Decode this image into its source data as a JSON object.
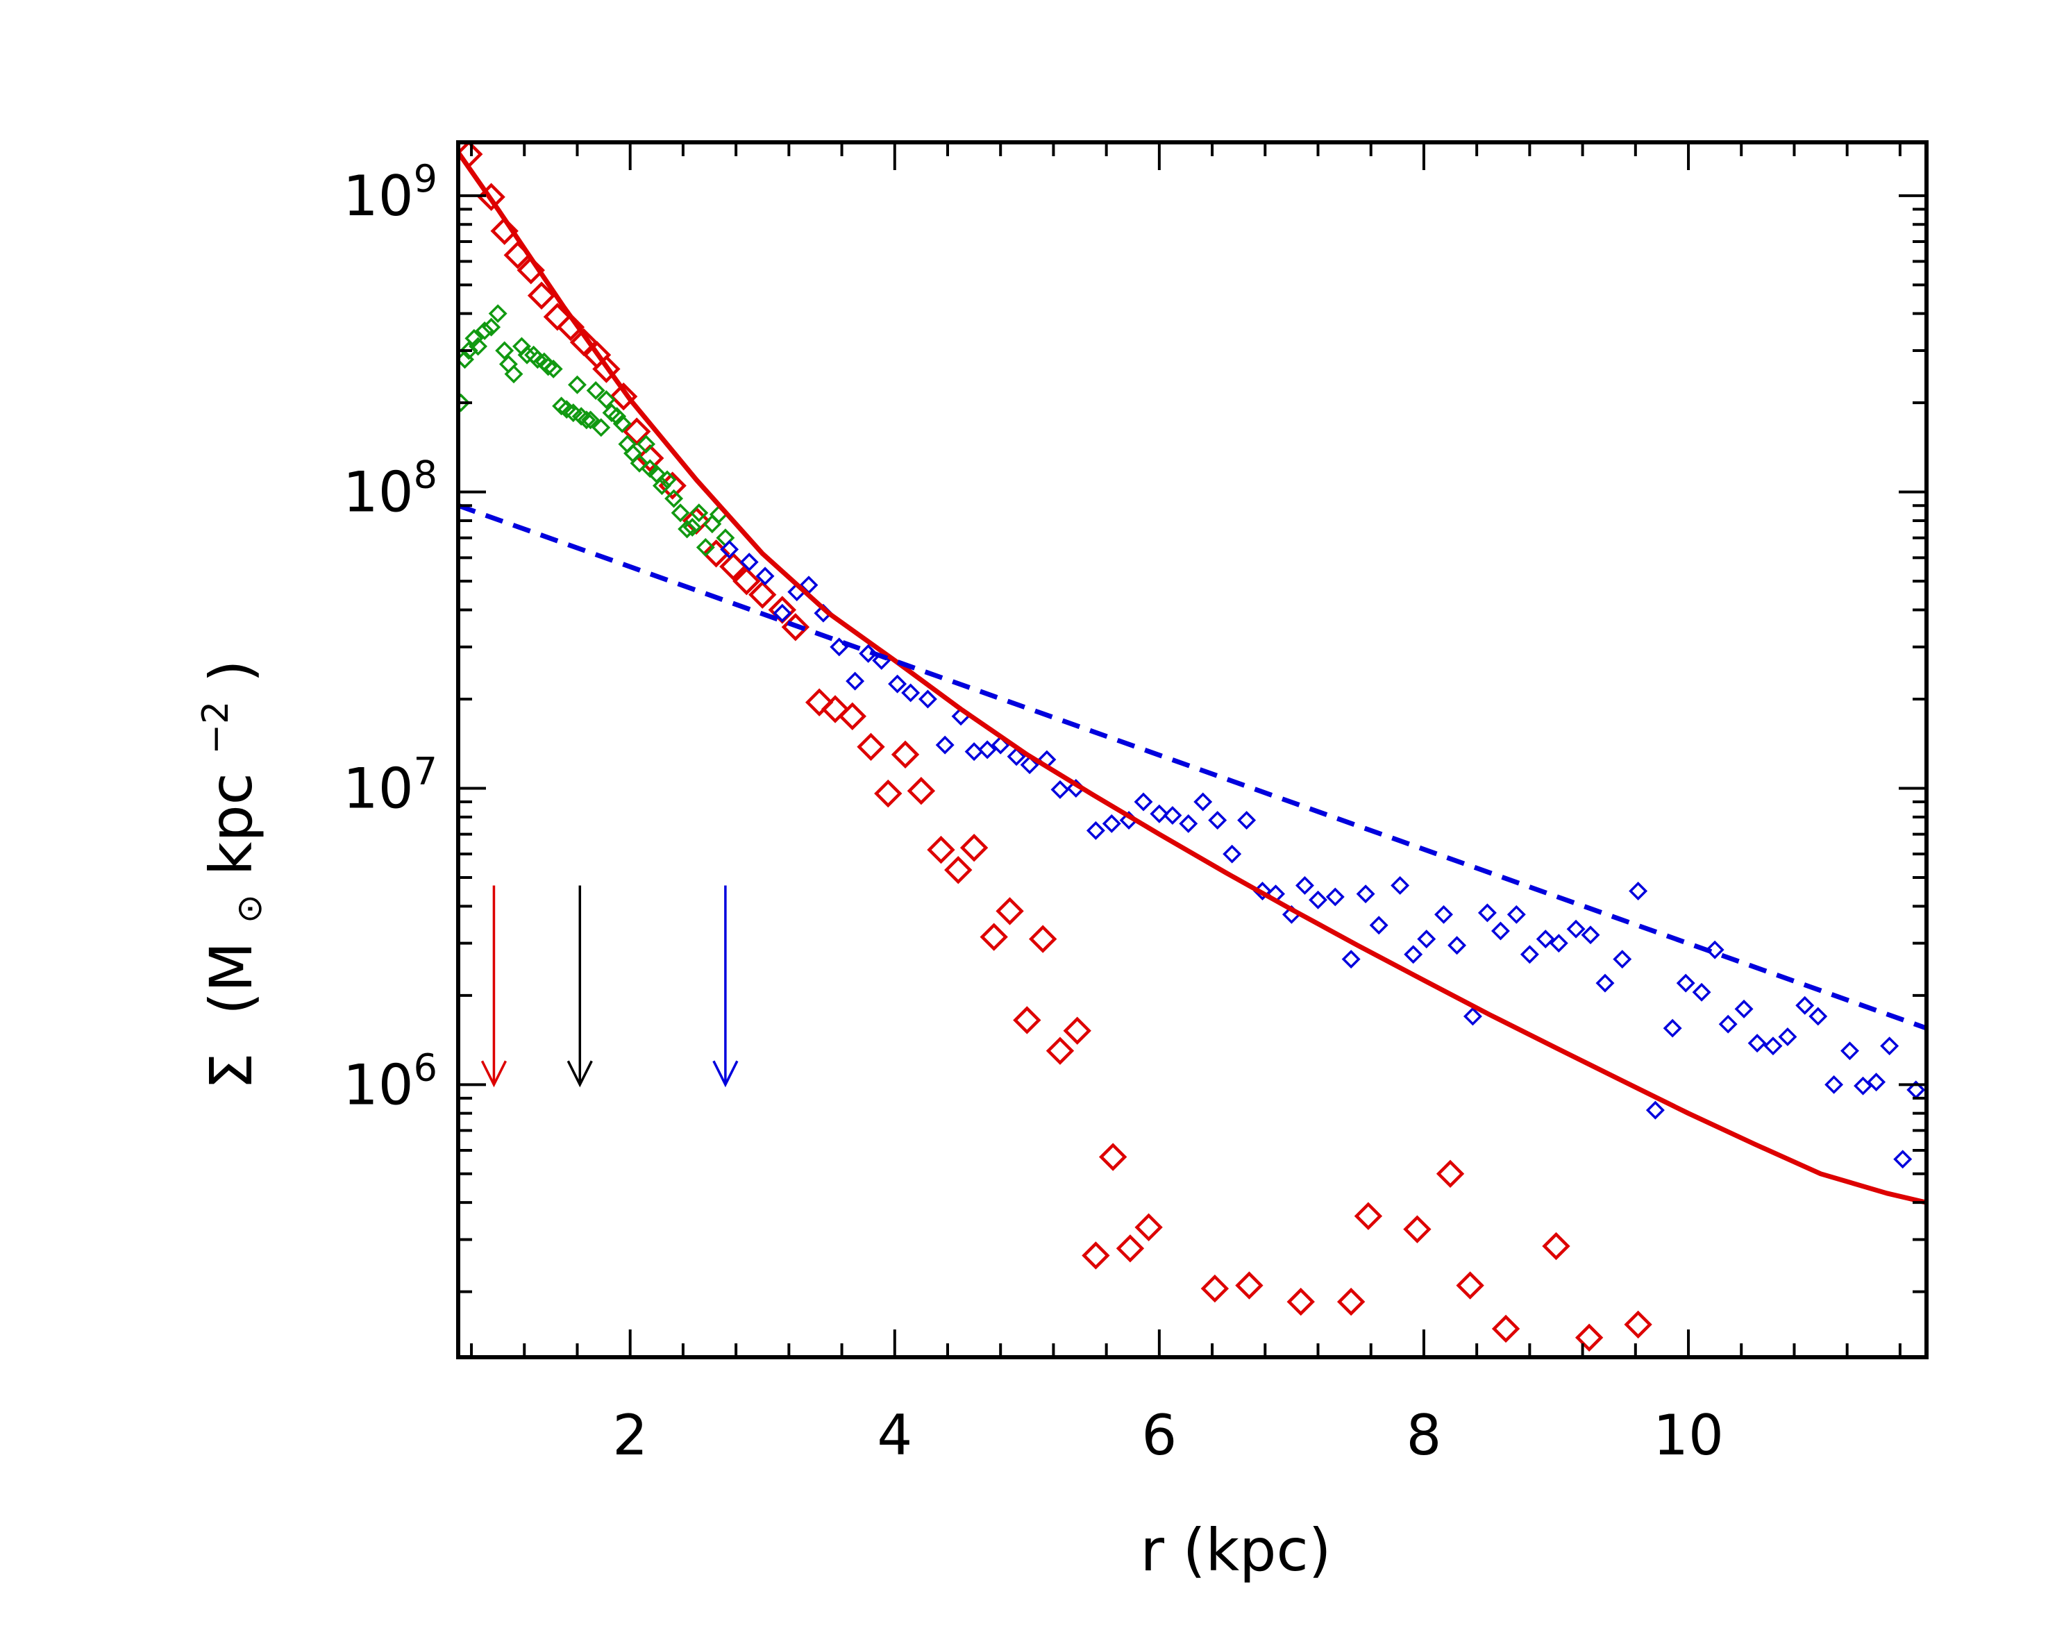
{
  "chart_data": {
    "type": "scatter",
    "title": "",
    "xlabel": "r (kpc)",
    "ylabel": {
      "symbol": "Σ",
      "open": "(M",
      "sun": "⊙",
      "unit": " kpc",
      "exponent": "−2",
      "close": ")"
    },
    "xlim": [
      0.7,
      11.8
    ],
    "ylim_log10": [
      5.08,
      9.18
    ],
    "yscale": "log",
    "x_ticks": [
      {
        "value": 2,
        "label": "2"
      },
      {
        "value": 4,
        "label": "4"
      },
      {
        "value": 6,
        "label": "6"
      },
      {
        "value": 8,
        "label": "8"
      },
      {
        "value": 10,
        "label": "10"
      }
    ],
    "y_ticks": [
      {
        "exp": 6,
        "base": "10",
        "sup": "6"
      },
      {
        "exp": 7,
        "base": "10",
        "sup": "7"
      },
      {
        "exp": 8,
        "base": "10",
        "sup": "8"
      },
      {
        "exp": 9,
        "base": "10",
        "sup": "9"
      }
    ],
    "colors": {
      "red": "#dd0000",
      "green": "#119911",
      "blue": "#0000dd",
      "black": "#000000"
    },
    "series": [
      {
        "name": "red-points",
        "color": "#dd0000",
        "marker": "diamond-large",
        "points": [
          [
            0.78,
            1380000000.0
          ],
          [
            0.95,
            990000000.0
          ],
          [
            1.05,
            760000000.0
          ],
          [
            1.15,
            630000000.0
          ],
          [
            1.25,
            560000000.0
          ],
          [
            1.33,
            460000000.0
          ],
          [
            1.45,
            390000000.0
          ],
          [
            1.55,
            360000000.0
          ],
          [
            1.65,
            320000000.0
          ],
          [
            1.75,
            290000000.0
          ],
          [
            1.82,
            260000000.0
          ],
          [
            1.95,
            210000000.0
          ],
          [
            2.05,
            160000000.0
          ],
          [
            2.15,
            130000000.0
          ],
          [
            2.32,
            105000000.0
          ],
          [
            2.5,
            80000000.0
          ],
          [
            2.65,
            62000000.0
          ],
          [
            2.78,
            56000000.0
          ],
          [
            2.88,
            50000000.0
          ],
          [
            3.0,
            45000000.0
          ],
          [
            3.15,
            40000000.0
          ],
          [
            3.25,
            35000000.0
          ],
          [
            3.43,
            19500000.0
          ],
          [
            3.55,
            18500000.0
          ],
          [
            3.68,
            17500000.0
          ],
          [
            3.82,
            13800000.0
          ],
          [
            3.95,
            9600000.0
          ],
          [
            4.08,
            13000000.0
          ],
          [
            4.2,
            9800000.0
          ],
          [
            4.35,
            6200000.0
          ],
          [
            4.48,
            5300000.0
          ],
          [
            4.6,
            6300000.0
          ],
          [
            4.75,
            3150000.0
          ],
          [
            4.87,
            3850000.0
          ],
          [
            5.0,
            1650000.0
          ],
          [
            5.12,
            3100000.0
          ],
          [
            5.25,
            1300000.0
          ],
          [
            5.38,
            1520000.0
          ],
          [
            5.52,
            265000.0
          ],
          [
            5.65,
            570000.0
          ],
          [
            5.78,
            280000.0
          ],
          [
            5.92,
            330000.0
          ],
          [
            6.42,
            205000.0
          ],
          [
            6.68,
            210000.0
          ],
          [
            7.07,
            185000.0
          ],
          [
            7.45,
            185000.0
          ],
          [
            7.58,
            360000.0
          ],
          [
            7.95,
            325000.0
          ],
          [
            8.2,
            500000.0
          ],
          [
            8.35,
            210000.0
          ],
          [
            8.62,
            150000.0
          ],
          [
            9.0,
            285000.0
          ],
          [
            9.25,
            140000.0
          ],
          [
            9.62,
            155000.0
          ]
        ]
      },
      {
        "name": "green-points",
        "color": "#119911",
        "marker": "diamond-small",
        "points": [
          [
            0.72,
            200000000.0
          ],
          [
            0.75,
            280000000.0
          ],
          [
            0.78,
            300000000.0
          ],
          [
            0.82,
            330000000.0
          ],
          [
            0.85,
            310000000.0
          ],
          [
            0.9,
            350000000.0
          ],
          [
            0.95,
            360000000.0
          ],
          [
            1.0,
            400000000.0
          ],
          [
            1.05,
            300000000.0
          ],
          [
            1.08,
            270000000.0
          ],
          [
            1.12,
            250000000.0
          ],
          [
            1.18,
            310000000.0
          ],
          [
            1.22,
            290000000.0
          ],
          [
            1.27,
            290000000.0
          ],
          [
            1.3,
            280000000.0
          ],
          [
            1.35,
            275000000.0
          ],
          [
            1.38,
            265000000.0
          ],
          [
            1.42,
            260000000.0
          ],
          [
            1.48,
            195000000.0
          ],
          [
            1.52,
            190000000.0
          ],
          [
            1.57,
            185000000.0
          ],
          [
            1.6,
            230000000.0
          ],
          [
            1.63,
            180000000.0
          ],
          [
            1.67,
            175000000.0
          ],
          [
            1.7,
            175000000.0
          ],
          [
            1.74,
            220000000.0
          ],
          [
            1.78,
            165000000.0
          ],
          [
            1.82,
            205000000.0
          ],
          [
            1.86,
            185000000.0
          ],
          [
            1.9,
            180000000.0
          ],
          [
            1.94,
            170000000.0
          ],
          [
            1.98,
            145000000.0
          ],
          [
            2.02,
            135000000.0
          ],
          [
            2.07,
            125000000.0
          ],
          [
            2.12,
            145000000.0
          ],
          [
            2.15,
            120000000.0
          ],
          [
            2.2,
            115000000.0
          ],
          [
            2.24,
            105000000.0
          ],
          [
            2.28,
            110000000.0
          ],
          [
            2.33,
            95000000.0
          ],
          [
            2.38,
            85000000.0
          ],
          [
            2.43,
            75000000.0
          ],
          [
            2.47,
            76000000.0
          ],
          [
            2.52,
            85000000.0
          ],
          [
            2.57,
            65000000.0
          ],
          [
            2.62,
            78000000.0
          ],
          [
            2.67,
            84000000.0
          ],
          [
            2.72,
            70000000.0
          ]
        ]
      },
      {
        "name": "blue-points",
        "color": "#0000dd",
        "marker": "diamond-small",
        "points": [
          [
            2.75,
            64000000.0
          ],
          [
            2.9,
            58000000.0
          ],
          [
            3.02,
            52000000.0
          ],
          [
            3.15,
            39000000.0
          ],
          [
            3.26,
            46000000.0
          ],
          [
            3.35,
            48500000.0
          ],
          [
            3.46,
            39000000.0
          ],
          [
            3.58,
            30000000.0
          ],
          [
            3.7,
            23000000.0
          ],
          [
            3.8,
            28500000.0
          ],
          [
            3.9,
            27000000.0
          ],
          [
            4.02,
            22500000.0
          ],
          [
            4.12,
            21000000.0
          ],
          [
            4.25,
            20000000.0
          ],
          [
            4.38,
            14000000.0
          ],
          [
            4.5,
            17500000.0
          ],
          [
            4.6,
            13300000.0
          ],
          [
            4.7,
            13500000.0
          ],
          [
            4.8,
            14000000.0
          ],
          [
            4.92,
            12800000.0
          ],
          [
            5.02,
            12000000.0
          ],
          [
            5.15,
            12500000.0
          ],
          [
            5.25,
            9900000.0
          ],
          [
            5.37,
            10000000.0
          ],
          [
            5.52,
            7200000.0
          ],
          [
            5.64,
            7600000.0
          ],
          [
            5.77,
            7800000.0
          ],
          [
            5.88,
            9000000.0
          ],
          [
            6.0,
            8200000.0
          ],
          [
            6.1,
            8100000.0
          ],
          [
            6.22,
            7600000.0
          ],
          [
            6.33,
            9000000.0
          ],
          [
            6.44,
            7800000.0
          ],
          [
            6.55,
            6000000.0
          ],
          [
            6.66,
            7800000.0
          ],
          [
            6.78,
            4500000.0
          ],
          [
            6.88,
            4400000.0
          ],
          [
            7.0,
            3750000.0
          ],
          [
            7.1,
            4700000.0
          ],
          [
            7.2,
            4200000.0
          ],
          [
            7.33,
            4300000.0
          ],
          [
            7.45,
            2650000.0
          ],
          [
            7.56,
            4400000.0
          ],
          [
            7.66,
            3450000.0
          ],
          [
            7.82,
            4700000.0
          ],
          [
            7.92,
            2750000.0
          ],
          [
            8.02,
            3100000.0
          ],
          [
            8.15,
            3750000.0
          ],
          [
            8.25,
            2950000.0
          ],
          [
            8.37,
            1700000.0
          ],
          [
            8.48,
            3800000.0
          ],
          [
            8.58,
            3300000.0
          ],
          [
            8.7,
            3750000.0
          ],
          [
            8.8,
            2750000.0
          ],
          [
            8.92,
            3100000.0
          ],
          [
            9.02,
            3000000.0
          ],
          [
            9.15,
            3350000.0
          ],
          [
            9.26,
            3200000.0
          ],
          [
            9.37,
            2200000.0
          ],
          [
            9.5,
            2650000.0
          ],
          [
            9.62,
            4500000.0
          ],
          [
            9.75,
            820000.0
          ],
          [
            9.88,
            1550000.0
          ],
          [
            9.98,
            2200000.0
          ],
          [
            10.1,
            2050000.0
          ],
          [
            10.2,
            2850000.0
          ],
          [
            10.3,
            1600000.0
          ],
          [
            10.42,
            1800000.0
          ],
          [
            10.52,
            1380000.0
          ],
          [
            10.64,
            1350000.0
          ],
          [
            10.75,
            1450000.0
          ],
          [
            10.88,
            1850000.0
          ],
          [
            10.98,
            1700000.0
          ],
          [
            11.1,
            1000000.0
          ],
          [
            11.22,
            1300000.0
          ],
          [
            11.32,
            990000.0
          ],
          [
            11.42,
            1020000.0
          ],
          [
            11.52,
            1350000.0
          ],
          [
            11.62,
            560000.0
          ],
          [
            11.72,
            960000.0
          ]
        ]
      },
      {
        "name": "red-fit-curve",
        "color": "#dd0000",
        "style": "solid",
        "points": [
          [
            0.7,
            1400000000.0
          ],
          [
            1.0,
            900000000.0
          ],
          [
            1.5,
            420000000.0
          ],
          [
            2.0,
            205000000.0
          ],
          [
            2.5,
            110000000.0
          ],
          [
            3.0,
            62000000.0
          ],
          [
            3.5,
            39000000.0
          ],
          [
            4.0,
            27000000.0
          ],
          [
            4.5,
            18500000.0
          ],
          [
            5.0,
            13000000.0
          ],
          [
            5.5,
            9500000.0
          ],
          [
            6.0,
            7000000.0
          ],
          [
            6.5,
            5200000.0
          ],
          [
            7.0,
            3900000.0
          ],
          [
            7.5,
            2950000.0
          ],
          [
            8.0,
            2250000.0
          ],
          [
            8.5,
            1720000.0
          ],
          [
            9.0,
            1330000.0
          ],
          [
            9.5,
            1030000.0
          ],
          [
            10.0,
            800000.0
          ],
          [
            10.5,
            630000.0
          ],
          [
            11.0,
            500000.0
          ],
          [
            11.5,
            430000.0
          ],
          [
            11.8,
            400000.0
          ]
        ]
      },
      {
        "name": "blue-dashed-fit",
        "color": "#0000dd",
        "style": "dashed",
        "points": [
          [
            0.7,
            90000000.0
          ],
          [
            11.8,
            1550000.0
          ]
        ]
      }
    ],
    "arrows": [
      {
        "name": "red-arrow",
        "x": 0.97,
        "color": "#dd0000",
        "from": 4700000.0,
        "to": 1000000.0
      },
      {
        "name": "black-arrow",
        "x": 1.62,
        "color": "#000000",
        "from": 4700000.0,
        "to": 1000000.0
      },
      {
        "name": "blue-arrow",
        "x": 2.72,
        "color": "#0000dd",
        "from": 4700000.0,
        "to": 1000000.0
      }
    ]
  }
}
